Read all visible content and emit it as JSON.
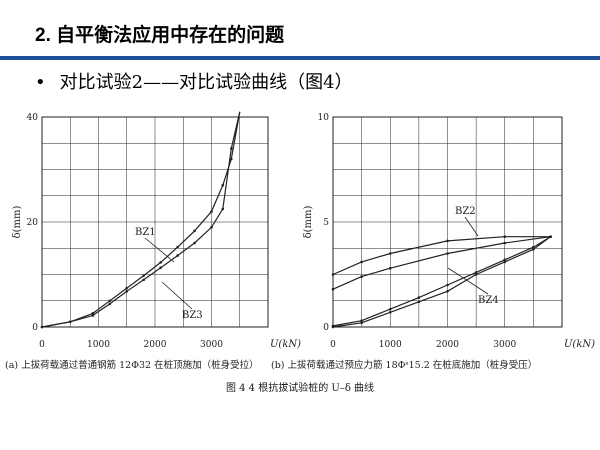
{
  "slide": {
    "title": "2. 自平衡法应用中存在的问题",
    "bullet": "•",
    "subtitle": "对比试验2——对比试验曲线（图4）",
    "figure_caption": "图 4  4 根抗拔试验桩的 U–δ 曲线"
  },
  "colors": {
    "title_bar": "#1f4e9a",
    "line": "#222222",
    "grid": "#222222"
  },
  "chart_data": [
    {
      "type": "line",
      "panel_caption": "(a) 上拔荷载通过普通钢筋 12Φ32 在桩顶施加（桩身受拉）",
      "xlabel": "U(kN)",
      "ylabel": "δ(mm)",
      "xlim": [
        0,
        4000
      ],
      "ylim": [
        0,
        40
      ],
      "xticks": [
        0,
        1000,
        2000,
        3000
      ],
      "yticks": [
        0,
        20,
        40
      ],
      "grid": true,
      "series": [
        {
          "name": "BZ1",
          "x": [
            0,
            500,
            900,
            1200,
            1500,
            1800,
            2100,
            2400,
            2700,
            3000,
            3200,
            3350,
            3500
          ],
          "y": [
            0,
            1,
            2.6,
            5,
            7.4,
            9.8,
            12.3,
            15.2,
            18.3,
            22,
            27,
            32,
            41
          ]
        },
        {
          "name": "BZ3",
          "x": [
            0,
            500,
            900,
            1200,
            1500,
            1800,
            2100,
            2400,
            2700,
            3000,
            3200,
            3350,
            3500
          ],
          "y": [
            0,
            1,
            2.2,
            4.4,
            6.8,
            9,
            11.3,
            13.6,
            16,
            19,
            22.5,
            34,
            41
          ]
        }
      ],
      "annotations": [
        "BZ1",
        "BZ3"
      ]
    },
    {
      "type": "line",
      "panel_caption": "(b) 上拔荷载通过预应力筋 18Φˢ15.2 在桩底施加（桩身受压）",
      "xlabel": "U(kN)",
      "ylabel": "δ(mm)",
      "xlim": [
        0,
        4000
      ],
      "ylim": [
        0,
        10
      ],
      "xticks": [
        0,
        1000,
        2000,
        3000
      ],
      "yticks": [
        0,
        5,
        10
      ],
      "grid": true,
      "series": [
        {
          "name": "BZ2 loading",
          "x": [
            0,
            500,
            1000,
            1500,
            2000,
            2500,
            3000,
            3500,
            3800
          ],
          "y": [
            0.05,
            0.3,
            0.85,
            1.4,
            2,
            2.6,
            3.2,
            3.8,
            4.3
          ]
        },
        {
          "name": "BZ2 unloading",
          "x": [
            3800,
            3000,
            2000,
            1000,
            500,
            0
          ],
          "y": [
            4.3,
            4.3,
            4.1,
            3.5,
            3.1,
            2.5
          ]
        },
        {
          "name": "BZ4 loading",
          "x": [
            0,
            500,
            1000,
            1500,
            2000,
            2500,
            3000,
            3500,
            3800
          ],
          "y": [
            0,
            0.2,
            0.7,
            1.2,
            1.7,
            2.5,
            3.1,
            3.7,
            4.3
          ]
        },
        {
          "name": "BZ4 unloading",
          "x": [
            3800,
            3000,
            2000,
            1000,
            500,
            0
          ],
          "y": [
            4.3,
            4.0,
            3.5,
            2.8,
            2.4,
            1.8
          ]
        }
      ],
      "annotations": [
        "BZ2",
        "BZ4"
      ]
    }
  ]
}
